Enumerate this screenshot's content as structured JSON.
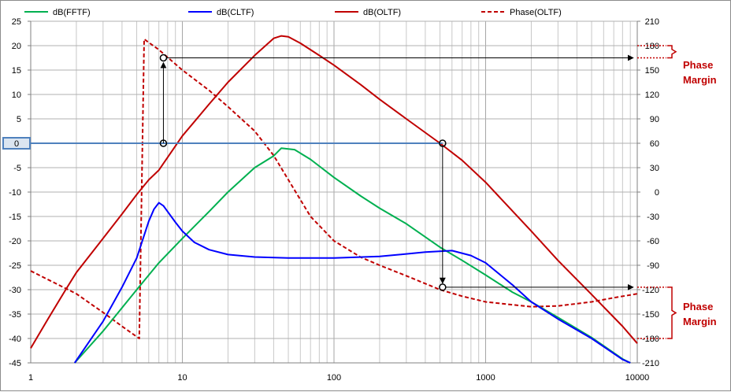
{
  "chart_data": {
    "type": "line",
    "x_scale": "log",
    "xlim": [
      1,
      10000
    ],
    "ylim_left": [
      -45,
      25
    ],
    "ylim_right": [
      -210,
      210
    ],
    "x_ticks": [
      "1",
      "10",
      "100",
      "1000",
      "10000"
    ],
    "y_ticks_left": [
      "25",
      "20",
      "15",
      "10",
      "5",
      "0",
      "-5",
      "-10",
      "-15",
      "-20",
      "-25",
      "-30",
      "-35",
      "-40",
      "-45"
    ],
    "y_ticks_right": [
      "210",
      "180",
      "150",
      "120",
      "90",
      "60",
      "30",
      "0",
      "-30",
      "-60",
      "-90",
      "-120",
      "-150",
      "-180",
      "-210"
    ],
    "grid": true,
    "legend_position": "top",
    "colors": {
      "fftf": "#00b050",
      "cltf": "#0000ff",
      "oltf": "#c00000",
      "phase": "#c00000",
      "zero_line": "#4f81bd"
    },
    "series": [
      {
        "name": "dB(FFTF)",
        "axis": "left",
        "style": "solid",
        "x": [
          1.95,
          3,
          5,
          7,
          10,
          15,
          20,
          30,
          40,
          45,
          55,
          70,
          100,
          150,
          200,
          300,
          500,
          700,
          1000,
          1500,
          2000,
          3000,
          5000,
          8000,
          9000
        ],
        "y": [
          -45,
          -38.5,
          -30,
          -24.5,
          -19.5,
          -14,
          -10,
          -5,
          -2.6,
          -1,
          -1.3,
          -3.3,
          -7,
          -10.8,
          -13.3,
          -16.5,
          -21.3,
          -24,
          -27,
          -30.5,
          -32.5,
          -35.7,
          -39.8,
          -44.2,
          -45
        ]
      },
      {
        "name": "dB(CLTF)",
        "axis": "left",
        "style": "solid",
        "x": [
          1.95,
          3,
          4,
          5,
          6,
          6.5,
          7,
          7.5,
          8,
          9,
          10,
          12,
          15,
          20,
          30,
          50,
          70,
          100,
          200,
          400,
          600,
          800,
          1000,
          1500,
          2000,
          3000,
          5000,
          8000,
          9000
        ],
        "y": [
          -45,
          -36.5,
          -29.5,
          -23.5,
          -16,
          -13.5,
          -12.2,
          -12.8,
          -14,
          -16.2,
          -18,
          -20.3,
          -21.8,
          -22.8,
          -23.3,
          -23.5,
          -23.5,
          -23.5,
          -23.2,
          -22.3,
          -22,
          -23,
          -24.5,
          -29,
          -32.5,
          -36,
          -40,
          -44.3,
          -45
        ]
      },
      {
        "name": "dB(OLTF)",
        "axis": "left",
        "style": "solid",
        "x": [
          1,
          1.3,
          1.7,
          2,
          3,
          4,
          5,
          6,
          7,
          10,
          15,
          20,
          30,
          40,
          45,
          50,
          60,
          80,
          100,
          150,
          200,
          300,
          500,
          700,
          1000,
          2000,
          3000,
          5000,
          8000,
          10000
        ],
        "y": [
          -42,
          -36,
          -30,
          -26.5,
          -19.5,
          -14.5,
          -10.5,
          -7.5,
          -5.5,
          1.5,
          8,
          12.5,
          18,
          21.5,
          22,
          21.8,
          20.5,
          18,
          16,
          12,
          9,
          5,
          0,
          -3.5,
          -8,
          -18,
          -24,
          -31,
          -37.5,
          -41
        ]
      },
      {
        "name": "Phase(OLTF)",
        "axis": "right",
        "style": "dashed",
        "x": [
          1,
          2,
          3,
          4,
          5.2,
          5.6,
          7,
          10,
          15,
          20,
          30,
          40,
          50,
          70,
          100,
          150,
          200,
          300,
          500,
          700,
          1000,
          2000,
          3000,
          5000,
          7000,
          10000
        ],
        "y": [
          -97,
          -125,
          -148,
          -165,
          -180,
          188,
          175,
          150,
          125,
          105,
          75,
          45,
          15,
          -30,
          -60,
          -80,
          -90,
          -103,
          -120,
          -128,
          -135,
          -141,
          -140,
          -135,
          -130,
          -125
        ]
      }
    ],
    "annotations": [
      {
        "text": "0",
        "type": "zero-label"
      },
      {
        "text": "Phase",
        "text2": "Margin",
        "type": "phase-margin-upper"
      },
      {
        "text": "Phase",
        "text2": "Margin",
        "type": "phase-margin-lower"
      }
    ]
  }
}
